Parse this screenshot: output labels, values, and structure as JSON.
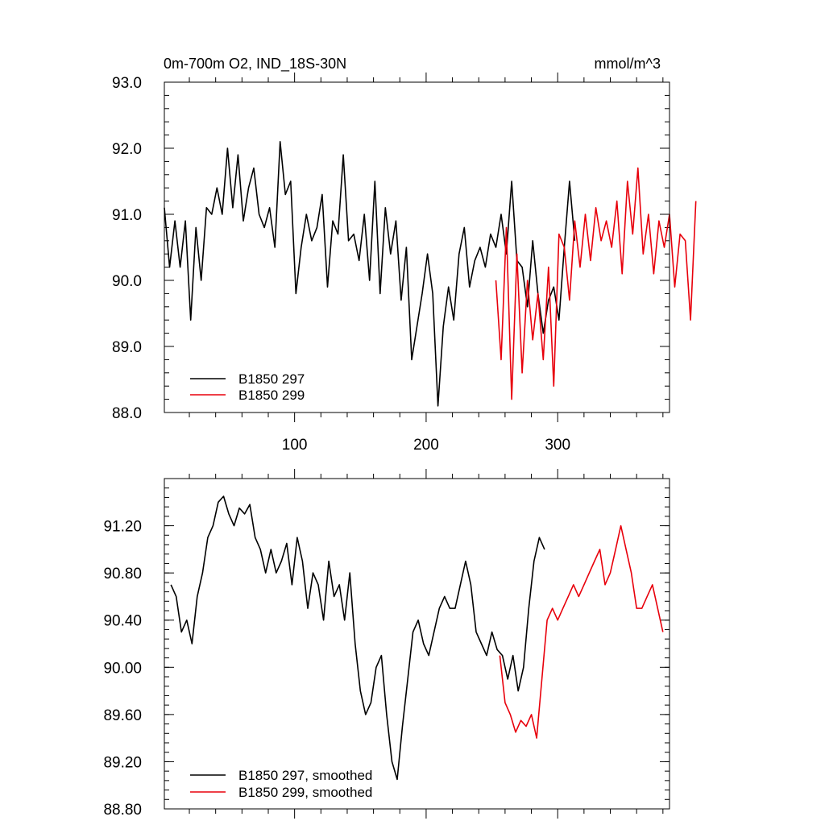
{
  "colors": {
    "series_1": "#000000",
    "series_2": "#e8000b"
  },
  "chart_data": [
    {
      "type": "line",
      "title": "0m-700m O2, IND_18S-30N",
      "units": "mmol/m^3",
      "xlim": [
        1,
        385
      ],
      "ylim": [
        88.0,
        93.0
      ],
      "xticks": [
        100,
        200,
        300
      ],
      "xtick_labels": [
        "100",
        "200",
        "300"
      ],
      "yticks": [
        88.0,
        89.0,
        90.0,
        91.0,
        92.0,
        93.0
      ],
      "ytick_labels": [
        "88.0",
        "89.0",
        "90.0",
        "91.0",
        "92.0",
        "93.0"
      ],
      "legend_position": "bottom-left",
      "series": [
        {
          "name": "B1850 297",
          "color": "#000000",
          "x_start": 1,
          "x_step": 4,
          "values": [
            91.1,
            90.2,
            90.9,
            90.2,
            90.9,
            89.4,
            90.8,
            90.0,
            91.1,
            91.0,
            91.4,
            91.0,
            92.0,
            91.1,
            91.9,
            90.9,
            91.4,
            91.7,
            91.0,
            90.8,
            91.1,
            90.5,
            92.1,
            91.3,
            91.5,
            89.8,
            90.5,
            91.0,
            90.6,
            90.8,
            91.3,
            89.9,
            90.9,
            90.7,
            91.9,
            90.6,
            90.7,
            90.3,
            91.0,
            90.0,
            91.5,
            89.8,
            91.1,
            90.4,
            90.9,
            89.7,
            90.5,
            88.8,
            89.3,
            89.8,
            90.4,
            89.8,
            88.1,
            89.3,
            89.9,
            89.4,
            90.4,
            90.8,
            89.9,
            90.3,
            90.5,
            90.2,
            90.7,
            90.5,
            91.0,
            90.4,
            91.5,
            90.3,
            90.2,
            89.6,
            90.6,
            89.8,
            89.2,
            89.7,
            89.9,
            89.4,
            90.5,
            91.5,
            90.6
          ]
        },
        {
          "name": "B1850 299",
          "color": "#e8000b",
          "x_start": 253,
          "x_step": 4,
          "values": [
            90.0,
            88.8,
            90.8,
            88.2,
            90.4,
            88.6,
            90.0,
            89.1,
            89.8,
            88.8,
            90.2,
            88.4,
            90.7,
            90.5,
            89.7,
            90.9,
            90.2,
            91.0,
            90.3,
            91.1,
            90.6,
            90.9,
            90.5,
            91.2,
            90.1,
            91.5,
            90.7,
            91.7,
            90.4,
            91.0,
            90.1,
            90.9,
            90.5,
            91.0,
            89.9,
            90.7,
            90.6,
            89.4,
            91.2
          ]
        }
      ]
    },
    {
      "type": "line",
      "xlim": [
        1,
        385
      ],
      "ylim": [
        88.8,
        91.6
      ],
      "xticks": [
        100,
        200,
        300
      ],
      "xtick_labels": [],
      "yticks": [
        88.8,
        89.2,
        89.6,
        90.0,
        90.4,
        90.8,
        91.2
      ],
      "ytick_labels": [
        "88.80",
        "89.20",
        "89.60",
        "90.00",
        "90.40",
        "90.80",
        "91.20"
      ],
      "legend_position": "bottom-left",
      "series": [
        {
          "name": "B1850 297, smoothed",
          "color": "#000000",
          "x_start": 6,
          "x_step": 4,
          "values": [
            90.7,
            90.6,
            90.3,
            90.4,
            90.2,
            90.6,
            90.8,
            91.1,
            91.2,
            91.4,
            91.45,
            91.3,
            91.2,
            91.35,
            91.3,
            91.38,
            91.1,
            91.0,
            90.8,
            91.0,
            90.8,
            90.9,
            91.05,
            90.7,
            91.1,
            90.9,
            90.5,
            90.8,
            90.7,
            90.4,
            90.9,
            90.6,
            90.7,
            90.4,
            90.8,
            90.2,
            89.8,
            89.6,
            89.7,
            90.0,
            90.1,
            89.6,
            89.2,
            89.05,
            89.5,
            89.9,
            90.3,
            90.4,
            90.2,
            90.1,
            90.3,
            90.5,
            90.6,
            90.5,
            90.5,
            90.7,
            90.9,
            90.7,
            90.3,
            90.2,
            90.1,
            90.3,
            90.15,
            90.1,
            89.9,
            90.1,
            89.8,
            90.0,
            90.5,
            90.9,
            91.1,
            91.0
          ]
        },
        {
          "name": "B1850 299, smoothed",
          "color": "#e8000b",
          "x_start": 256,
          "x_step": 4,
          "values": [
            90.1,
            89.7,
            89.6,
            89.45,
            89.55,
            89.5,
            89.6,
            89.4,
            89.9,
            90.4,
            90.5,
            90.4,
            90.5,
            90.6,
            90.7,
            90.6,
            90.7,
            90.8,
            90.9,
            91.0,
            90.7,
            90.8,
            91.0,
            91.2,
            91.0,
            90.8,
            90.5,
            90.5,
            90.6,
            90.7,
            90.5,
            90.3
          ]
        }
      ]
    }
  ]
}
